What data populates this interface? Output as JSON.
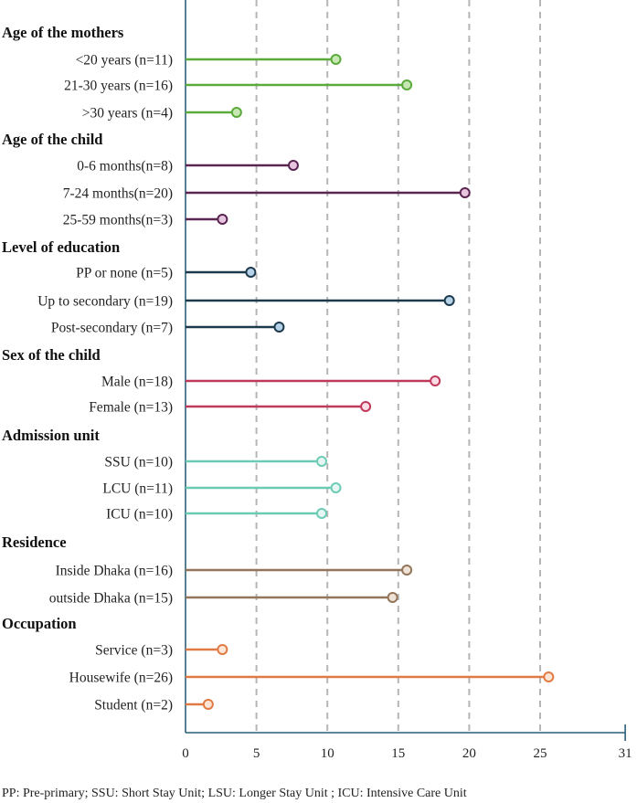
{
  "chart_data": {
    "type": "lollipop",
    "x": [
      0,
      5,
      10,
      15,
      20,
      25,
      31
    ],
    "xlim": [
      0,
      31
    ],
    "grid": "vertical dashed",
    "groups": [
      {
        "title": "Age of the mothers",
        "color": "#5aaa3c",
        "fill": "#c7e7b3",
        "items": [
          {
            "label": "<20 years (n=11)",
            "value": 10.6
          },
          {
            "label": "21-30 years (n=16)",
            "value": 15.6
          },
          {
            "label": ">30 years (n=4)",
            "value": 3.6
          }
        ]
      },
      {
        "title": "Age of the child",
        "color": "#5a2550",
        "fill": "#e8c6e0",
        "items": [
          {
            "label": "0-6 months(n=8)",
            "value": 7.6
          },
          {
            "label": "7-24 months(n=20)",
            "value": 19.7
          },
          {
            "label": "25-59 months(n=3)",
            "value": 2.6
          }
        ]
      },
      {
        "title": "Level of education",
        "color": "#1d3a4c",
        "fill": "#b6d2e8",
        "items": [
          {
            "label": "PP or none (n=5)",
            "value": 4.6
          },
          {
            "label": "Up to secondary (n=19)",
            "value": 18.6
          },
          {
            "label": "Post-secondary (n=7)",
            "value": 6.6
          }
        ]
      },
      {
        "title": "Sex of the child",
        "color": "#c0385a",
        "fill": "#fbdde6",
        "items": [
          {
            "label": "Male (n=18)",
            "value": 17.6
          },
          {
            "label": "Female (n=13)",
            "value": 12.7
          }
        ]
      },
      {
        "title": "Admission unit",
        "color": "#6ccbb5",
        "fill": "#e6f6f2",
        "items": [
          {
            "label": "SSU (n=10)",
            "value": 9.6
          },
          {
            "label": "LCU (n=11)",
            "value": 10.6
          },
          {
            "label": "ICU (n=10)",
            "value": 9.6
          }
        ]
      },
      {
        "title": "Residence",
        "color": "#94755a",
        "fill": "#eee3d6",
        "items": [
          {
            "label": "Inside Dhaka (n=16)",
            "value": 15.6
          },
          {
            "label": "outside Dhaka (n=15)",
            "value": 14.6
          }
        ]
      },
      {
        "title": "Occupation",
        "color": "#e07a42",
        "fill": "#fde6d6",
        "items": [
          {
            "label": "Service (n=3)",
            "value": 2.6
          },
          {
            "label": "Housewife (n=26)",
            "value": 25.6
          },
          {
            "label": "Student  (n=2)",
            "value": 1.6
          }
        ]
      }
    ]
  },
  "footnote": "PP: Pre-primary; SSU: Short Stay Unit; LSU: Longer Stay Unit ; ICU: Intensive Care Unit"
}
